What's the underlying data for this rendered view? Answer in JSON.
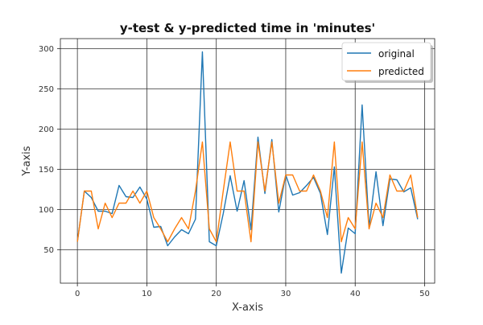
{
  "chart_data": {
    "type": "line",
    "title": "y-test & y-predicted time in 'minutes'",
    "xlabel": "X-axis",
    "ylabel": "Y-axis",
    "xlim": [
      -2.45,
      51.45
    ],
    "ylim": [
      8.5,
      312.5
    ],
    "x_ticks": [
      0,
      10,
      20,
      30,
      40,
      50
    ],
    "y_ticks": [
      50,
      100,
      150,
      200,
      250,
      300
    ],
    "grid": true,
    "legend_position": "upper right",
    "x": [
      0,
      1,
      2,
      3,
      4,
      5,
      6,
      7,
      8,
      9,
      10,
      11,
      12,
      13,
      14,
      15,
      16,
      17,
      18,
      19,
      20,
      21,
      22,
      23,
      24,
      25,
      26,
      27,
      28,
      29,
      30,
      31,
      32,
      33,
      34,
      35,
      36,
      37,
      38,
      39,
      40,
      41,
      42,
      43,
      44,
      45,
      46,
      47,
      48,
      49
    ],
    "series": [
      {
        "name": "original",
        "color": "#1f77b4",
        "values": [
          60,
          123,
          115,
          98,
          98,
          95,
          130,
          116,
          115,
          128,
          113,
          78,
          79,
          55,
          66,
          75,
          70,
          88,
          296,
          60,
          55,
          95,
          142,
          98,
          136,
          75,
          190,
          120,
          187,
          97,
          143,
          118,
          121,
          130,
          140,
          120,
          69,
          153,
          21,
          77,
          70,
          230,
          78,
          147,
          80,
          138,
          137,
          122,
          127,
          88
        ]
      },
      {
        "name": "predicted",
        "color": "#ff7f0e",
        "values": [
          60,
          123,
          123,
          76,
          108,
          90,
          108,
          108,
          123,
          108,
          123,
          90,
          76,
          60,
          76,
          90,
          76,
          123,
          184,
          76,
          60,
          123,
          184,
          123,
          123,
          60,
          184,
          123,
          184,
          108,
          143,
          143,
          123,
          123,
          143,
          123,
          90,
          184,
          60,
          90,
          76,
          184,
          76,
          108,
          90,
          143,
          123,
          123,
          143,
          90
        ]
      }
    ]
  }
}
